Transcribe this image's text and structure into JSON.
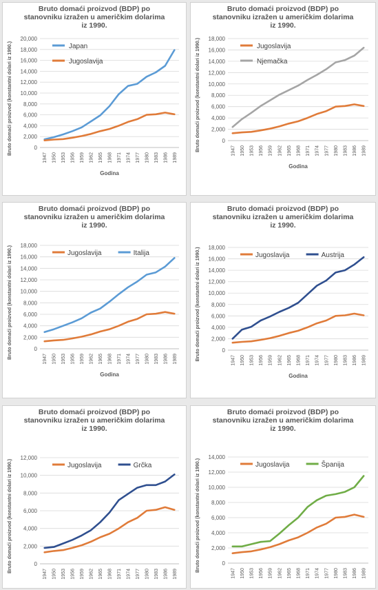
{
  "page": {
    "background": "#e9e9e9"
  },
  "colors": {
    "jugoslavija": "#e07b39",
    "japan": "#5b9bd5",
    "njemacka": "#a5a5a5",
    "italija": "#5b9bd5",
    "austrija": "#2f4f8f",
    "grcka": "#2f4f8f",
    "spanija": "#70ad47"
  },
  "chart_data": [
    {
      "type": "line",
      "title_lines": [
        "Bruto domaći proizvod (BDP) po",
        "stanovniku izražen u američkim dolarima",
        "iz 1990."
      ],
      "ylabel": "Bruto domaći proizvod (konstantni dolari iz 1990.)",
      "xlabel": "Godina",
      "ylim": [
        0,
        20000
      ],
      "yticks": [
        "0",
        "2,000",
        "4,000",
        "6,000",
        "8,000",
        "10,000",
        "12,000",
        "14,000",
        "16,000",
        "18,000",
        "20,000"
      ],
      "xticks": [
        "1947",
        "1950",
        "1953",
        "1956",
        "1959",
        "1962",
        "1965",
        "1968",
        "1971",
        "1974",
        "1977",
        "1980",
        "1983",
        "1986",
        "1989"
      ],
      "legend_position": "top-left",
      "series": [
        {
          "name": "Japan",
          "color": "#5b9bd5",
          "values": [
            1500,
            1900,
            2400,
            3000,
            3700,
            4800,
            5900,
            7600,
            9800,
            11300,
            11700,
            13000,
            13800,
            15000,
            17900
          ]
        },
        {
          "name": "Jugoslavija",
          "color": "#e07b39",
          "values": [
            1300,
            1450,
            1550,
            1800,
            2100,
            2500,
            3000,
            3400,
            4000,
            4700,
            5200,
            6000,
            6100,
            6400,
            6100
          ]
        }
      ]
    },
    {
      "type": "line",
      "title_lines": [
        "Bruto domaći proizvod (BDP) po",
        "stanovniku izražen u američkim dolarima",
        "iz 1990."
      ],
      "ylabel": "Bruto domaći proizvod (konstantni dolari iz 1990.)",
      "xlabel": "Godina",
      "ylim": [
        0,
        18000
      ],
      "yticks": [
        "0",
        "2,000",
        "4,000",
        "6,000",
        "8,000",
        "10,000",
        "12,000",
        "14,000",
        "16,000",
        "18,000"
      ],
      "xticks": [
        "1947",
        "1950",
        "1953",
        "1956",
        "1959",
        "1962",
        "1965",
        "1968",
        "1971",
        "1974",
        "1977",
        "1980",
        "1983",
        "1986",
        "1989"
      ],
      "legend_position": "top-left",
      "series": [
        {
          "name": "Jugoslavija",
          "color": "#e07b39",
          "values": [
            1300,
            1450,
            1550,
            1800,
            2100,
            2500,
            3000,
            3400,
            4000,
            4700,
            5200,
            6000,
            6100,
            6400,
            6100
          ]
        },
        {
          "name": "Njemačka",
          "color": "#a5a5a5",
          "values": [
            2400,
            3800,
            4900,
            6100,
            7100,
            8100,
            8900,
            9700,
            10700,
            11600,
            12600,
            13800,
            14200,
            15000,
            16400
          ]
        }
      ]
    },
    {
      "type": "line",
      "title_lines": [
        "Bruto domaći proizvod (BDP) po",
        "stanovniku izražen u američkim dolarima",
        "iz 1990."
      ],
      "ylabel": "Bruto domaći proizvod (konstantni dolari iz 1990.)",
      "xlabel": "Godina",
      "ylim": [
        0,
        18000
      ],
      "yticks": [
        "0",
        "2,000",
        "4,000",
        "6,000",
        "8,000",
        "10,000",
        "12,000",
        "14,000",
        "16,000",
        "18,000"
      ],
      "xticks": [
        "1947",
        "1950",
        "1953",
        "1956",
        "1959",
        "1962",
        "1965",
        "1968",
        "1971",
        "1974",
        "1977",
        "1980",
        "1983",
        "1986",
        "1989"
      ],
      "legend_position": "top-left",
      "series": [
        {
          "name": "Jugoslavija",
          "color": "#e07b39",
          "values": [
            1300,
            1450,
            1550,
            1800,
            2100,
            2500,
            3000,
            3400,
            4000,
            4700,
            5200,
            6000,
            6100,
            6400,
            6100
          ]
        },
        {
          "name": "Italija",
          "color": "#5b9bd5",
          "values": [
            2900,
            3400,
            4000,
            4600,
            5300,
            6300,
            7000,
            8200,
            9500,
            10700,
            11700,
            12900,
            13300,
            14300,
            15800
          ]
        }
      ]
    },
    {
      "type": "line",
      "title_lines": [
        "Bruto domaći proizvod (BDP) po",
        "stanovniku izražen u američkim dolarima",
        "iz 1990."
      ],
      "ylabel": "Bruto domaći proizvod (konstantni dolari iz 1990.)",
      "xlabel": "Godina",
      "ylim": [
        0,
        18000
      ],
      "yticks": [
        "0",
        "2,000",
        "4,000",
        "6,000",
        "8,000",
        "10,000",
        "12,000",
        "14,000",
        "16,000",
        "18,000"
      ],
      "xticks": [
        "1947",
        "1950",
        "1953",
        "1956",
        "1959",
        "1962",
        "1965",
        "1968",
        "1971",
        "1974",
        "1977",
        "1980",
        "1983",
        "1986",
        "1989"
      ],
      "legend_position": "top-left",
      "series": [
        {
          "name": "Jugoslavija",
          "color": "#e07b39",
          "values": [
            1300,
            1450,
            1550,
            1800,
            2100,
            2500,
            3000,
            3400,
            4000,
            4700,
            5200,
            6000,
            6100,
            6400,
            6100
          ]
        },
        {
          "name": "Austrija",
          "color": "#2f4f8f",
          "values": [
            2000,
            3600,
            4100,
            5200,
            5900,
            6700,
            7400,
            8300,
            9800,
            11300,
            12200,
            13600,
            14000,
            15000,
            16300
          ]
        }
      ]
    },
    {
      "type": "line",
      "title_lines": [
        "Bruto domaći proizvod (BDP) po",
        "stanovniku izražen u američkim dolarima",
        "iz 1990."
      ],
      "ylabel": "Bruto domaći proizvod (konstantni dolari iz 1990.)",
      "xlabel": "",
      "ylim": [
        0,
        12000
      ],
      "yticks": [
        "0",
        "2,000",
        "4,000",
        "6,000",
        "8,000",
        "10,000",
        "12,000"
      ],
      "xticks": [
        "1947",
        "1950",
        "1953",
        "1956",
        "1959",
        "1962",
        "1965",
        "1968",
        "1971",
        "1974",
        "1977",
        "1980",
        "1983",
        "1986",
        "1989"
      ],
      "legend_position": "top-left",
      "series": [
        {
          "name": "Jugoslavija",
          "color": "#e07b39",
          "values": [
            1300,
            1450,
            1550,
            1800,
            2100,
            2500,
            3000,
            3400,
            4000,
            4700,
            5200,
            6000,
            6100,
            6400,
            6100
          ]
        },
        {
          "name": "Grčka",
          "color": "#2f4f8f",
          "values": [
            1800,
            1900,
            2300,
            2700,
            3200,
            3800,
            4700,
            5800,
            7200,
            7900,
            8600,
            8900,
            8900,
            9300,
            10100
          ]
        }
      ]
    },
    {
      "type": "line",
      "title_lines": [
        "Bruto domaći proizvod (BDP) po",
        "stanovniku izražen u američkim dolarima",
        "iz 1990."
      ],
      "ylabel": "Bruto domaći proizvod (konstantni dolari iz 1990.)",
      "xlabel": "",
      "ylim": [
        0,
        14000
      ],
      "yticks": [
        "0",
        "2,000",
        "4,000",
        "6,000",
        "8,000",
        "10,000",
        "12,000",
        "14,000"
      ],
      "xticks": [
        "1947",
        "1950",
        "1953",
        "1956",
        "1959",
        "1962",
        "1965",
        "1968",
        "1971",
        "1974",
        "1977",
        "1980",
        "1983",
        "1986",
        "1989"
      ],
      "legend_position": "top-left",
      "series": [
        {
          "name": "Jugoslavija",
          "color": "#e07b39",
          "values": [
            1300,
            1450,
            1550,
            1800,
            2100,
            2500,
            3000,
            3400,
            4000,
            4700,
            5200,
            6000,
            6100,
            6400,
            6100
          ]
        },
        {
          "name": "Španija",
          "color": "#70ad47",
          "values": [
            2200,
            2200,
            2500,
            2800,
            2900,
            3900,
            5000,
            6000,
            7400,
            8300,
            8900,
            9100,
            9400,
            10000,
            11500
          ]
        }
      ]
    }
  ]
}
